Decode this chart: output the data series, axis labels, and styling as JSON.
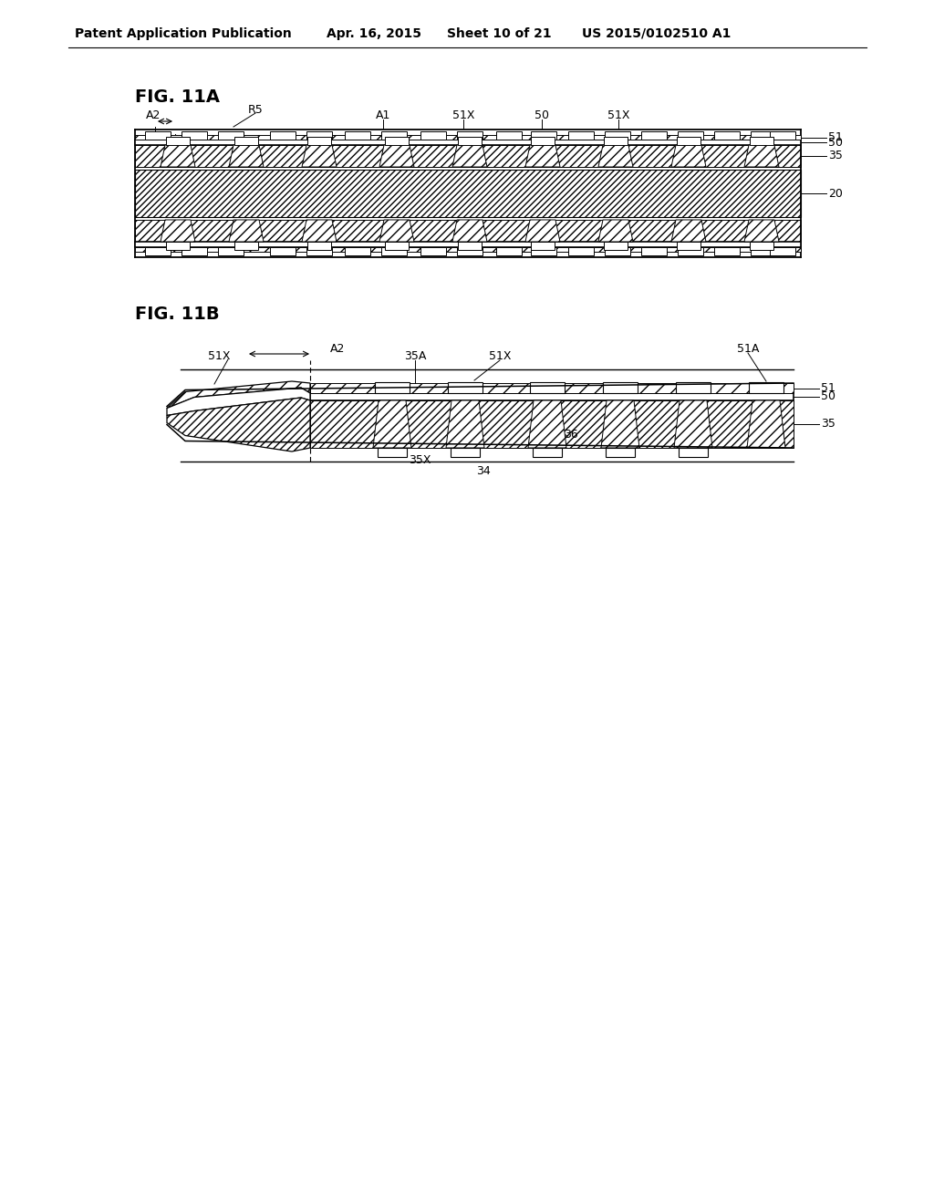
{
  "bg_color": "#ffffff",
  "header_text": "Patent Application Publication",
  "header_date": "Apr. 16, 2015",
  "header_sheet": "Sheet 10 of 21",
  "header_patent": "US 2015/0102510 A1",
  "fig11a_label": "FIG. 11A",
  "fig11b_label": "FIG. 11B",
  "line_color": "#000000",
  "hatch_color": "#000000",
  "fill_color": "#ffffff"
}
